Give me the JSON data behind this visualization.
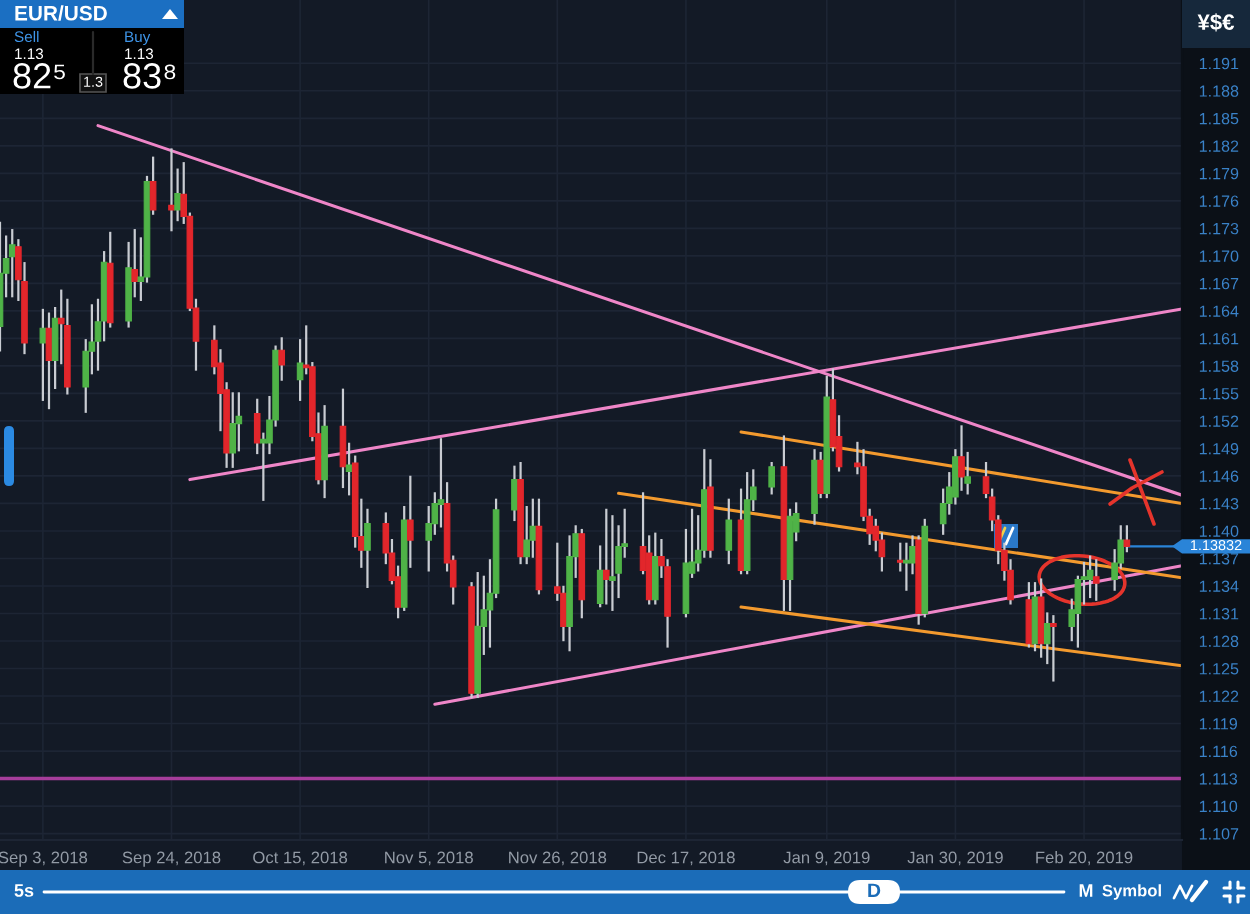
{
  "chart_data": {
    "type": "candlestick",
    "title": "EUR/USD",
    "x": [
      "2018-08-27",
      "2018-08-28",
      "2018-08-29",
      "2018-08-30",
      "2018-08-31",
      "2018-09-03",
      "2018-09-04",
      "2018-09-05",
      "2018-09-06",
      "2018-09-07",
      "2018-09-10",
      "2018-09-11",
      "2018-09-12",
      "2018-09-13",
      "2018-09-14",
      "2018-09-17",
      "2018-09-18",
      "2018-09-19",
      "2018-09-20",
      "2018-09-21",
      "2018-09-24",
      "2018-09-25",
      "2018-09-26",
      "2018-09-27",
      "2018-09-28",
      "2018-10-01",
      "2018-10-02",
      "2018-10-03",
      "2018-10-04",
      "2018-10-05",
      "2018-10-08",
      "2018-10-09",
      "2018-10-10",
      "2018-10-11",
      "2018-10-12",
      "2018-10-15",
      "2018-10-16",
      "2018-10-17",
      "2018-10-18",
      "2018-10-19",
      "2018-10-22",
      "2018-10-23",
      "2018-10-24",
      "2018-10-25",
      "2018-10-26",
      "2018-10-29",
      "2018-10-30",
      "2018-10-31",
      "2018-11-01",
      "2018-11-02",
      "2018-11-05",
      "2018-11-06",
      "2018-11-07",
      "2018-11-08",
      "2018-11-09",
      "2018-11-12",
      "2018-11-13",
      "2018-11-14",
      "2018-11-15",
      "2018-11-16",
      "2018-11-19",
      "2018-11-20",
      "2018-11-21",
      "2018-11-22",
      "2018-11-23",
      "2018-11-26",
      "2018-11-27",
      "2018-11-28",
      "2018-11-29",
      "2018-11-30",
      "2018-12-03",
      "2018-12-04",
      "2018-12-05",
      "2018-12-06",
      "2018-12-07",
      "2018-12-10",
      "2018-12-11",
      "2018-12-12",
      "2018-12-13",
      "2018-12-14",
      "2018-12-17",
      "2018-12-18",
      "2018-12-19",
      "2018-12-20",
      "2018-12-21",
      "2018-12-24",
      "2018-12-26",
      "2018-12-27",
      "2018-12-28",
      "2018-12-31",
      "2019-01-02",
      "2019-01-03",
      "2019-01-04",
      "2019-01-07",
      "2019-01-08",
      "2019-01-09",
      "2019-01-10",
      "2019-01-11",
      "2019-01-14",
      "2019-01-15",
      "2019-01-16",
      "2019-01-17",
      "2019-01-18",
      "2019-01-21",
      "2019-01-22",
      "2019-01-23",
      "2019-01-24",
      "2019-01-25",
      "2019-01-28",
      "2019-01-29",
      "2019-01-30",
      "2019-01-31",
      "2019-02-01",
      "2019-02-04",
      "2019-02-05",
      "2019-02-06",
      "2019-02-07",
      "2019-02-08",
      "2019-02-11",
      "2019-02-12",
      "2019-02-13",
      "2019-02-14",
      "2019-02-15",
      "2019-02-18",
      "2019-02-19",
      "2019-02-20",
      "2019-02-21",
      "2019-02-22",
      "2019-02-25",
      "2019-02-26",
      "2019-02-27"
    ],
    "ohlc": [
      [
        1.1623,
        1.1736,
        1.1597,
        1.1681
      ],
      [
        1.1681,
        1.1721,
        1.1656,
        1.1697
      ],
      [
        1.1699,
        1.1728,
        1.1656,
        1.1712
      ],
      [
        1.171,
        1.1717,
        1.1652,
        1.1674
      ],
      [
        1.1672,
        1.1692,
        1.1594,
        1.1605
      ],
      [
        1.1605,
        1.1641,
        1.1543,
        1.1621
      ],
      [
        1.1621,
        1.1637,
        1.1534,
        1.1586
      ],
      [
        1.1586,
        1.1643,
        1.1556,
        1.1632
      ],
      [
        1.1632,
        1.1662,
        1.1583,
        1.1626
      ],
      [
        1.1624,
        1.1652,
        1.155,
        1.1557
      ],
      [
        1.1557,
        1.1608,
        1.153,
        1.1596
      ],
      [
        1.1596,
        1.1646,
        1.1572,
        1.1606
      ],
      [
        1.1607,
        1.1652,
        1.1576,
        1.1628
      ],
      [
        1.1629,
        1.1704,
        1.1608,
        1.1693
      ],
      [
        1.1692,
        1.1725,
        1.1623,
        1.1627
      ],
      [
        1.1629,
        1.1714,
        1.1623,
        1.1687
      ],
      [
        1.1685,
        1.1728,
        1.1656,
        1.1672
      ],
      [
        1.1672,
        1.1719,
        1.1652,
        1.1677
      ],
      [
        1.1677,
        1.1786,
        1.1672,
        1.1781
      ],
      [
        1.1781,
        1.1807,
        1.1746,
        1.175
      ],
      [
        1.1755,
        1.1816,
        1.1728,
        1.175
      ],
      [
        1.175,
        1.1794,
        1.1739,
        1.1768
      ],
      [
        1.1767,
        1.1801,
        1.1736,
        1.1743
      ],
      [
        1.1743,
        1.1746,
        1.1641,
        1.1643
      ],
      [
        1.1643,
        1.1652,
        1.1576,
        1.1607
      ],
      [
        1.1608,
        1.1623,
        1.1572,
        1.1579
      ],
      [
        1.1583,
        1.1597,
        1.151,
        1.155
      ],
      [
        1.1554,
        1.1561,
        1.147,
        1.1485
      ],
      [
        1.1485,
        1.155,
        1.147,
        1.1517
      ],
      [
        1.1517,
        1.155,
        1.1488,
        1.1525
      ],
      [
        1.1528,
        1.1543,
        1.1485,
        1.1496
      ],
      [
        1.1496,
        1.1506,
        1.1434,
        1.15
      ],
      [
        1.1496,
        1.1546,
        1.1485,
        1.1521
      ],
      [
        1.1521,
        1.1601,
        1.1515,
        1.1597
      ],
      [
        1.1597,
        1.161,
        1.1565,
        1.1581
      ],
      [
        1.1565,
        1.1608,
        1.1543,
        1.1583
      ],
      [
        1.1581,
        1.1623,
        1.1572,
        1.1578
      ],
      [
        1.1579,
        1.1583,
        1.1499,
        1.1503
      ],
      [
        1.1506,
        1.1528,
        1.1452,
        1.1456
      ],
      [
        1.1456,
        1.1536,
        1.1437,
        1.1514
      ],
      [
        1.1514,
        1.1554,
        1.1448,
        1.147
      ],
      [
        1.1465,
        1.1495,
        1.144,
        1.1472
      ],
      [
        1.1474,
        1.1481,
        1.1383,
        1.1394
      ],
      [
        1.1394,
        1.1434,
        1.1361,
        1.1379
      ],
      [
        1.1379,
        1.1423,
        1.1339,
        1.1408
      ],
      [
        1.1408,
        1.1419,
        1.1365,
        1.1376
      ],
      [
        1.1376,
        1.139,
        1.1343,
        1.1346
      ],
      [
        1.135,
        1.1361,
        1.1306,
        1.1317
      ],
      [
        1.1317,
        1.1426,
        1.1314,
        1.1412
      ],
      [
        1.1412,
        1.1459,
        1.1361,
        1.139
      ],
      [
        1.139,
        1.1426,
        1.1357,
        1.1408
      ],
      [
        1.1408,
        1.1441,
        1.1397,
        1.143
      ],
      [
        1.1429,
        1.15,
        1.1405,
        1.1434
      ],
      [
        1.143,
        1.1452,
        1.1357,
        1.1365
      ],
      [
        1.1368,
        1.1372,
        1.1321,
        1.1339
      ],
      [
        1.1339,
        1.1343,
        1.1219,
        1.1223
      ],
      [
        1.1223,
        1.1354,
        1.1219,
        1.1296
      ],
      [
        1.1296,
        1.135,
        1.1266,
        1.1314
      ],
      [
        1.1314,
        1.1368,
        1.1274,
        1.1332
      ],
      [
        1.1332,
        1.1434,
        1.1328,
        1.1423
      ],
      [
        1.1423,
        1.147,
        1.1412,
        1.1456
      ],
      [
        1.1456,
        1.1474,
        1.1365,
        1.1372
      ],
      [
        1.1372,
        1.1426,
        1.1365,
        1.139
      ],
      [
        1.139,
        1.1434,
        1.1372,
        1.1405
      ],
      [
        1.1405,
        1.1434,
        1.1332,
        1.1336
      ],
      [
        1.1339,
        1.1386,
        1.1325,
        1.1332
      ],
      [
        1.1332,
        1.1339,
        1.1281,
        1.1296
      ],
      [
        1.1296,
        1.1394,
        1.127,
        1.1372
      ],
      [
        1.1372,
        1.1405,
        1.135,
        1.1397
      ],
      [
        1.1397,
        1.1401,
        1.1306,
        1.1325
      ],
      [
        1.1321,
        1.1383,
        1.1318,
        1.1357
      ],
      [
        1.1357,
        1.1423,
        1.1321,
        1.1347
      ],
      [
        1.1346,
        1.1416,
        1.1314,
        1.135
      ],
      [
        1.1354,
        1.1405,
        1.1328,
        1.1383
      ],
      [
        1.1383,
        1.1423,
        1.1372,
        1.1386
      ],
      [
        1.1383,
        1.1441,
        1.1354,
        1.1357
      ],
      [
        1.1376,
        1.1394,
        1.1321,
        1.1325
      ],
      [
        1.1325,
        1.1397,
        1.1321,
        1.1372
      ],
      [
        1.1372,
        1.139,
        1.135,
        1.1362
      ],
      [
        1.1361,
        1.1368,
        1.1274,
        1.1307
      ],
      [
        1.131,
        1.1401,
        1.1307,
        1.1365
      ],
      [
        1.1354,
        1.1423,
        1.135,
        1.1366
      ],
      [
        1.1365,
        1.1416,
        1.1357,
        1.1379
      ],
      [
        1.1379,
        1.1488,
        1.1372,
        1.1445
      ],
      [
        1.1448,
        1.1477,
        1.1372,
        1.1379
      ],
      [
        1.1379,
        1.1434,
        1.1365,
        1.1412
      ],
      [
        1.1412,
        1.1445,
        1.1354,
        1.1357
      ],
      [
        1.1357,
        1.1463,
        1.1354,
        1.1434
      ],
      [
        1.1434,
        1.1466,
        1.1423,
        1.1448
      ],
      [
        1.1448,
        1.1474,
        1.1441,
        1.147
      ],
      [
        1.147,
        1.1503,
        1.1314,
        1.1347
      ],
      [
        1.1347,
        1.1423,
        1.1314,
        1.1416
      ],
      [
        1.1399,
        1.143,
        1.139,
        1.1419
      ],
      [
        1.1419,
        1.1488,
        1.1408,
        1.1477
      ],
      [
        1.1477,
        1.1485,
        1.1437,
        1.1441
      ],
      [
        1.1441,
        1.1568,
        1.1437,
        1.1546
      ],
      [
        1.1543,
        1.1576,
        1.1488,
        1.1492
      ],
      [
        1.1503,
        1.1525,
        1.1466,
        1.147
      ],
      [
        1.1474,
        1.1496,
        1.1463,
        1.147
      ],
      [
        1.147,
        1.1488,
        1.1412,
        1.1416
      ],
      [
        1.1416,
        1.1423,
        1.1386,
        1.1397
      ],
      [
        1.1405,
        1.1412,
        1.1379,
        1.139
      ],
      [
        1.139,
        1.1397,
        1.1357,
        1.1372
      ],
      [
        1.1368,
        1.1386,
        1.1357,
        1.1366
      ],
      [
        1.1365,
        1.1386,
        1.1336,
        1.1368
      ],
      [
        1.1365,
        1.1394,
        1.1354,
        1.1383
      ],
      [
        1.139,
        1.1394,
        1.1299,
        1.131
      ],
      [
        1.131,
        1.1412,
        1.1307,
        1.1405
      ],
      [
        1.1408,
        1.1445,
        1.1397,
        1.143
      ],
      [
        1.143,
        1.1463,
        1.1419,
        1.1448
      ],
      [
        1.1437,
        1.1488,
        1.143,
        1.1481
      ],
      [
        1.1481,
        1.1514,
        1.1445,
        1.1459
      ],
      [
        1.1452,
        1.1485,
        1.1441,
        1.1459
      ],
      [
        1.1459,
        1.1474,
        1.1437,
        1.1441
      ],
      [
        1.1437,
        1.1445,
        1.1401,
        1.1412
      ],
      [
        1.1412,
        1.1416,
        1.1365,
        1.1379
      ],
      [
        1.1379,
        1.1386,
        1.1347,
        1.1357
      ],
      [
        1.1357,
        1.1368,
        1.1321,
        1.1325
      ],
      [
        1.1325,
        1.1343,
        1.1274,
        1.1277
      ],
      [
        1.1277,
        1.1343,
        1.127,
        1.1328
      ],
      [
        1.1328,
        1.1347,
        1.1263,
        1.1277
      ],
      [
        1.1277,
        1.131,
        1.1256,
        1.1299
      ],
      [
        1.1299,
        1.1307,
        1.1237,
        1.1296
      ],
      [
        1.1296,
        1.1325,
        1.1281,
        1.1314
      ],
      [
        1.131,
        1.135,
        1.1274,
        1.1347
      ],
      [
        1.1347,
        1.1365,
        1.1321,
        1.135
      ],
      [
        1.1347,
        1.1372,
        1.1328,
        1.1357
      ],
      [
        1.135,
        1.1368,
        1.1325,
        1.1343
      ],
      [
        1.1347,
        1.1379,
        1.1336,
        1.1365
      ],
      [
        1.1365,
        1.1405,
        1.136,
        1.139
      ],
      [
        1.139,
        1.1405,
        1.1378,
        1.13832
      ]
    ],
    "colors": [
      "#4fb347",
      "#4fb347",
      "#4fb347",
      "#e2262b",
      "#e2262b",
      "#4fb347",
      "#e2262b",
      "#4fb347",
      "#e2262b",
      "#e2262b",
      "#4fb347",
      "#4fb347",
      "#4fb347",
      "#4fb347",
      "#e2262b",
      "#4fb347",
      "#e2262b",
      "#4fb347",
      "#4fb347",
      "#e2262b",
      "#e2262b",
      "#4fb347",
      "#e2262b",
      "#e2262b",
      "#e2262b",
      "#e2262b",
      "#e2262b",
      "#e2262b",
      "#4fb347",
      "#4fb347",
      "#e2262b",
      "#4fb347",
      "#4fb347",
      "#4fb347",
      "#e2262b",
      "#4fb347",
      "#e2262b",
      "#e2262b",
      "#e2262b",
      "#4fb347",
      "#e2262b",
      "#4fb347",
      "#e2262b",
      "#e2262b",
      "#4fb347",
      "#e2262b",
      "#e2262b",
      "#e2262b",
      "#4fb347",
      "#e2262b",
      "#4fb347",
      "#4fb347",
      "#4fb347",
      "#e2262b",
      "#e2262b",
      "#e2262b",
      "#4fb347",
      "#4fb347",
      "#4fb347",
      "#4fb347",
      "#4fb347",
      "#e2262b",
      "#4fb347",
      "#4fb347",
      "#e2262b",
      "#e2262b",
      "#e2262b",
      "#4fb347",
      "#4fb347",
      "#e2262b",
      "#4fb347",
      "#e2262b",
      "#4fb347",
      "#4fb347",
      "#4fb347",
      "#e2262b",
      "#e2262b",
      "#4fb347",
      "#e2262b",
      "#e2262b",
      "#4fb347",
      "#4fb347",
      "#4fb347",
      "#4fb347",
      "#e2262b",
      "#4fb347",
      "#e2262b",
      "#4fb347",
      "#4fb347",
      "#4fb347",
      "#e2262b",
      "#4fb347",
      "#4fb347",
      "#4fb347",
      "#e2262b",
      "#4fb347",
      "#e2262b",
      "#e2262b",
      "#e2262b",
      "#e2262b",
      "#e2262b",
      "#e2262b",
      "#e2262b",
      "#e2262b",
      "#4fb347",
      "#4fb347",
      "#e2262b",
      "#4fb347",
      "#4fb347",
      "#4fb347",
      "#4fb347",
      "#e2262b",
      "#4fb347",
      "#e2262b",
      "#e2262b",
      "#e2262b",
      "#e2262b",
      "#e2262b",
      "#e2262b",
      "#4fb347",
      "#e2262b",
      "#4fb347",
      "#e2262b",
      "#4fb347",
      "#4fb347",
      "#4fb347",
      "#4fb347",
      "#e2262b",
      "#4fb347",
      "#4fb347",
      "#e2262b"
    ],
    "xlim": [
      "2018-08-27",
      "2019-03-08"
    ],
    "xticks": [
      {
        "value": "2018-09-03",
        "label": "Sep 3, 2018"
      },
      {
        "value": "2018-09-24",
        "label": "Sep 24, 2018"
      },
      {
        "value": "2018-10-15",
        "label": "Oct 15, 2018"
      },
      {
        "value": "2018-11-05",
        "label": "Nov 5, 2018"
      },
      {
        "value": "2018-11-26",
        "label": "Nov 26, 2018"
      },
      {
        "value": "2018-12-17",
        "label": "Dec 17, 2018"
      },
      {
        "value": "2019-01-09",
        "label": "Jan 9, 2019"
      },
      {
        "value": "2019-01-30",
        "label": "Jan 30, 2019"
      },
      {
        "value": "2019-02-20",
        "label": "Feb 20, 2019"
      }
    ],
    "ylim": [
      1.1063,
      1.1979
    ],
    "yticks": [
      1.107,
      {
        "value": 1.11,
        "label": "1.110"
      },
      1.113,
      1.116,
      1.119,
      1.122,
      1.125,
      1.128,
      1.131,
      1.134,
      1.137,
      {
        "value": 1.14,
        "label": "1.140"
      },
      1.143,
      1.146,
      1.149,
      1.152,
      1.155,
      1.158,
      1.161,
      1.164,
      1.167,
      {
        "value": 1.17,
        "label": "1.170"
      },
      1.173,
      1.176,
      1.179,
      1.182,
      1.185,
      1.188,
      1.191
    ],
    "grid": true,
    "series": [
      {
        "type": "line",
        "color": "#ef86c8",
        "x": [
          "2018-09-12",
          "2019-03-08"
        ],
        "values": [
          1.1842,
          1.1439
        ]
      },
      {
        "type": "line",
        "color": "#ef86c8",
        "x": [
          "2018-09-27",
          "2019-03-08"
        ],
        "values": [
          1.1456,
          1.1642
        ]
      },
      {
        "type": "line",
        "color": "#ef86c8",
        "x": [
          "2018-11-06",
          "2019-03-08"
        ],
        "values": [
          1.1211,
          1.1362
        ]
      },
      {
        "type": "line",
        "color": "#f39a2e",
        "x": [
          "2018-12-26",
          "2019-03-08"
        ],
        "values": [
          1.1508,
          1.143
        ]
      },
      {
        "type": "line",
        "color": "#f39a2e",
        "x": [
          "2018-12-06",
          "2019-03-08"
        ],
        "values": [
          1.1441,
          1.1349
        ]
      },
      {
        "type": "line",
        "color": "#f39a2e",
        "x": [
          "2018-12-26",
          "2019-03-08"
        ],
        "values": [
          1.1317,
          1.1253
        ]
      }
    ],
    "ref_lines": [
      {
        "axis": "y",
        "value": 1.113,
        "color": "#a63d9b"
      },
      {
        "axis": "y",
        "value": 1.13832,
        "label": "1.13832",
        "color": "#2a84d8"
      }
    ],
    "annotations": [
      "Sell",
      "1.13",
      "82⁵",
      "1.3",
      "Buy",
      "1.13",
      "83⁸",
      "¥$€",
      "5s",
      "D",
      "M",
      "Symbol"
    ]
  }
}
